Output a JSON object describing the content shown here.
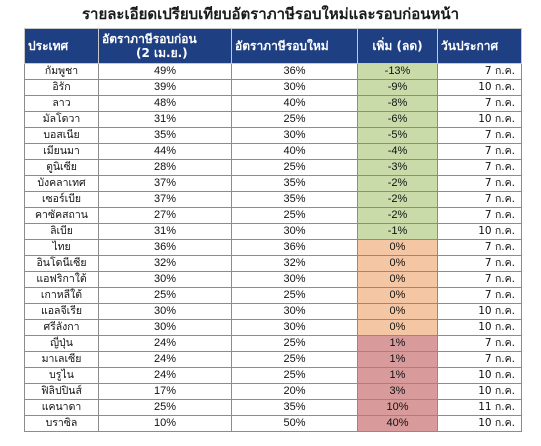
{
  "title": "รายละเอียดเปรียบเทียบอัตราภาษีรอบใหม่และรอบก่อนหน้า",
  "headers": {
    "country": "ประเทศ",
    "prev_rate_line1": "อัตราภาษีรอบก่อน",
    "prev_rate_line2": "(2 เม.ย.)",
    "new_rate": "อัตราภาษีรอบใหม่",
    "change": "เพิ่ม (ลด)",
    "date": "วันประกาศ"
  },
  "colors": {
    "header_bg": "#1f3f83",
    "decrease": "#c9dba9",
    "unchanged": "#f5c6a3",
    "increase": "#d89a9a"
  },
  "rows": [
    {
      "country": "กัมพูชา",
      "prev": "49%",
      "new": "36%",
      "change": "-13%",
      "status": "neg",
      "date": "7 ก.ค."
    },
    {
      "country": "อิรัก",
      "prev": "39%",
      "new": "30%",
      "change": "-9%",
      "status": "neg",
      "date": "10 ก.ค."
    },
    {
      "country": "ลาว",
      "prev": "48%",
      "new": "40%",
      "change": "-8%",
      "status": "neg",
      "date": "7 ก.ค."
    },
    {
      "country": "มัลโดวา",
      "prev": "31%",
      "new": "25%",
      "change": "-6%",
      "status": "neg",
      "date": "10 ก.ค."
    },
    {
      "country": "บอสเนีย",
      "prev": "35%",
      "new": "30%",
      "change": "-5%",
      "status": "neg",
      "date": "7 ก.ค."
    },
    {
      "country": "เมียนมา",
      "prev": "44%",
      "new": "40%",
      "change": "-4%",
      "status": "neg",
      "date": "7 ก.ค."
    },
    {
      "country": "ตูนิเซีย",
      "prev": "28%",
      "new": "25%",
      "change": "-3%",
      "status": "neg",
      "date": "7 ก.ค."
    },
    {
      "country": "บังคลาเทศ",
      "prev": "37%",
      "new": "35%",
      "change": "-2%",
      "status": "neg",
      "date": "7 ก.ค."
    },
    {
      "country": "เซอร์เบีย",
      "prev": "37%",
      "new": "35%",
      "change": "-2%",
      "status": "neg",
      "date": "7 ก.ค."
    },
    {
      "country": "คาซัคสถาน",
      "prev": "27%",
      "new": "25%",
      "change": "-2%",
      "status": "neg",
      "date": "7 ก.ค."
    },
    {
      "country": "ลิเบีย",
      "prev": "31%",
      "new": "30%",
      "change": "-1%",
      "status": "neg",
      "date": "10 ก.ค."
    },
    {
      "country": "ไทย",
      "prev": "36%",
      "new": "36%",
      "change": "0%",
      "status": "zero",
      "date": "7 ก.ค."
    },
    {
      "country": "อินโดนีเซีย",
      "prev": "32%",
      "new": "32%",
      "change": "0%",
      "status": "zero",
      "date": "7 ก.ค."
    },
    {
      "country": "แอฟริกาใต้",
      "prev": "30%",
      "new": "30%",
      "change": "0%",
      "status": "zero",
      "date": "7 ก.ค."
    },
    {
      "country": "เกาหลีใต้",
      "prev": "25%",
      "new": "25%",
      "change": "0%",
      "status": "zero",
      "date": "7 ก.ค."
    },
    {
      "country": "แอลจีเรีย",
      "prev": "30%",
      "new": "30%",
      "change": "0%",
      "status": "zero",
      "date": "10 ก.ค."
    },
    {
      "country": "ศรีลังกา",
      "prev": "30%",
      "new": "30%",
      "change": "0%",
      "status": "zero",
      "date": "10 ก.ค."
    },
    {
      "country": "ญี่ปุ่น",
      "prev": "24%",
      "new": "25%",
      "change": "1%",
      "status": "pos",
      "date": "7 ก.ค."
    },
    {
      "country": "มาเลเซีย",
      "prev": "24%",
      "new": "25%",
      "change": "1%",
      "status": "pos",
      "date": "7 ก.ค."
    },
    {
      "country": "บรูไน",
      "prev": "24%",
      "new": "25%",
      "change": "1%",
      "status": "pos",
      "date": "10 ก.ค."
    },
    {
      "country": "ฟิลิปปินส์",
      "prev": "17%",
      "new": "20%",
      "change": "3%",
      "status": "pos",
      "date": "10 ก.ค."
    },
    {
      "country": "แคนาดา",
      "prev": "25%",
      "new": "35%",
      "change": "10%",
      "status": "pos",
      "date": "11 ก.ค."
    },
    {
      "country": "บราซิล",
      "prev": "10%",
      "new": "50%",
      "change": "40%",
      "status": "pos",
      "date": "10 ก.ค."
    }
  ]
}
